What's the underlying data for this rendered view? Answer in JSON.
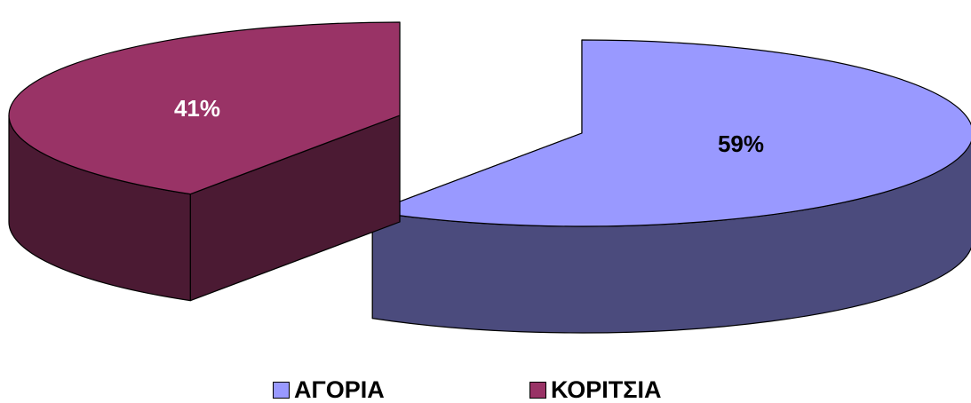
{
  "chart_data": {
    "type": "pie",
    "variant": "3d-exploded",
    "categories": [
      "ΑΓΟΡΙΑ",
      "ΚΟΡΙΤΣΙΑ"
    ],
    "values": [
      59,
      41
    ],
    "labels": [
      "59%",
      "41%"
    ],
    "colors": {
      "top": [
        "#9999FF",
        "#993366"
      ],
      "side": [
        "#4B4B7D",
        "#4B1A33"
      ],
      "outline": "#000000"
    },
    "label_colors": [
      "#000000",
      "#FFFFFF"
    ],
    "legend_position": "bottom"
  }
}
